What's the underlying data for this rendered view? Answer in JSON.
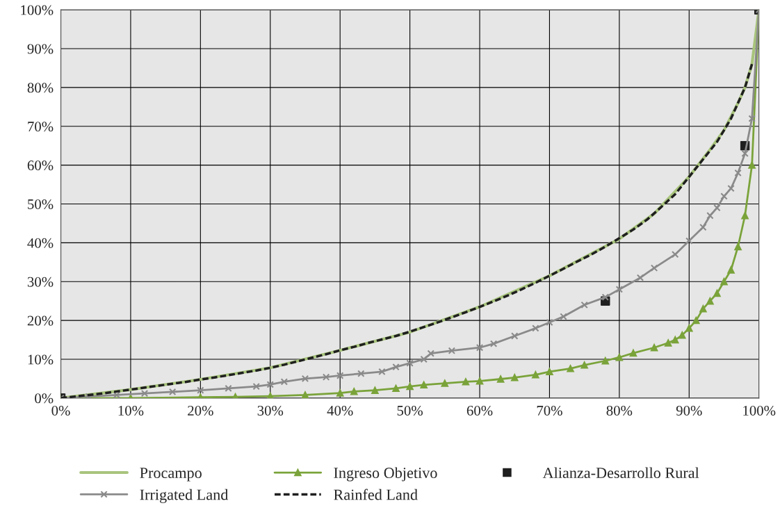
{
  "chart_data": {
    "type": "line",
    "xlim": [
      0,
      100
    ],
    "ylim": [
      0,
      100
    ],
    "xticks": [
      {
        "value": 0,
        "label": "0%"
      },
      {
        "value": 10,
        "label": "10%"
      },
      {
        "value": 20,
        "label": "20%"
      },
      {
        "value": 30,
        "label": "30%"
      },
      {
        "value": 40,
        "label": "40%"
      },
      {
        "value": 50,
        "label": "50%"
      },
      {
        "value": 60,
        "label": "60%"
      },
      {
        "value": 70,
        "label": "70%"
      },
      {
        "value": 80,
        "label": "80%"
      },
      {
        "value": 90,
        "label": "90%"
      },
      {
        "value": 100,
        "label": "100%"
      }
    ],
    "yticks": [
      {
        "value": 0,
        "label": "0%"
      },
      {
        "value": 10,
        "label": "10%"
      },
      {
        "value": 20,
        "label": "20%"
      },
      {
        "value": 30,
        "label": "30%"
      },
      {
        "value": 40,
        "label": "40%"
      },
      {
        "value": 50,
        "label": "50%"
      },
      {
        "value": 60,
        "label": "60%"
      },
      {
        "value": 70,
        "label": "70%"
      },
      {
        "value": 80,
        "label": "80%"
      },
      {
        "value": 90,
        "label": "90%"
      },
      {
        "value": 100,
        "label": "100%"
      }
    ],
    "grid": true,
    "legend": "bottom",
    "series": [
      {
        "name": "Procampo",
        "color": "#a8c47c",
        "marker": "none",
        "x": [
          0,
          10,
          20,
          30,
          40,
          50,
          60,
          70,
          80,
          85,
          90,
          93,
          95,
          97,
          98,
          99,
          100
        ],
        "values": [
          0,
          2.2,
          4.8,
          7.8,
          12.3,
          17,
          23.5,
          31.5,
          41,
          47.5,
          57,
          64,
          69,
          76,
          80,
          86,
          100
        ]
      },
      {
        "name": "Ingreso Objetivo",
        "color": "#7aa33a",
        "marker": "triangle",
        "x": [
          0,
          10,
          20,
          25,
          30,
          35,
          40,
          42,
          45,
          48,
          50,
          52,
          55,
          58,
          60,
          63,
          65,
          68,
          70,
          73,
          75,
          78,
          80,
          82,
          85,
          87,
          88,
          89,
          90,
          91,
          92,
          93,
          94,
          95,
          96,
          97,
          98,
          99,
          100
        ],
        "values": [
          0,
          0,
          0.2,
          0.3,
          0.5,
          0.8,
          1.3,
          1.7,
          2,
          2.5,
          3,
          3.4,
          3.8,
          4.2,
          4.4,
          4.9,
          5.3,
          6,
          6.8,
          7.6,
          8.5,
          9.6,
          10.5,
          11.6,
          13,
          14.2,
          15,
          16.2,
          18,
          20,
          23,
          25,
          27,
          30,
          33,
          39,
          47,
          60,
          100
        ]
      },
      {
        "name": "Alianza-Desarrollo Rural",
        "type": "scatter",
        "color": "#1f1f1f",
        "marker": "square",
        "x": [
          0,
          78,
          98,
          100
        ],
        "values": [
          0,
          25,
          65,
          100
        ]
      },
      {
        "name": "Irrigated Land",
        "color": "#8a8a8a",
        "marker": "cross",
        "x": [
          0,
          4,
          8,
          12,
          16,
          20,
          24,
          28,
          30,
          32,
          35,
          38,
          40,
          43,
          46,
          48,
          50,
          52,
          53,
          56,
          60,
          62,
          65,
          68,
          70,
          72,
          75,
          78,
          80,
          83,
          85,
          88,
          90,
          92,
          93,
          94,
          95,
          96,
          97,
          98,
          99,
          100
        ],
        "values": [
          0,
          0.4,
          0.8,
          1.2,
          1.6,
          2,
          2.5,
          3,
          3.5,
          4.2,
          5,
          5.4,
          5.8,
          6.3,
          6.8,
          8,
          9,
          10,
          11.5,
          12.2,
          13,
          14,
          16,
          18,
          19.5,
          21,
          24,
          26,
          28,
          31,
          33.5,
          37,
          40.5,
          44,
          47,
          49,
          52,
          54,
          58,
          63,
          72,
          100
        ]
      },
      {
        "name": "Rainfed Land",
        "color": "#1f1f1f",
        "marker": "none",
        "line_style": "dashed",
        "x": [
          0,
          2,
          4,
          6,
          8,
          10,
          12,
          14,
          16,
          18,
          20,
          22,
          24,
          26,
          28,
          30,
          32,
          34,
          36,
          38,
          40,
          42,
          44,
          46,
          48,
          50,
          52,
          54,
          56,
          58,
          60,
          62,
          64,
          66,
          68,
          70,
          72,
          74,
          76,
          78,
          80,
          82,
          84,
          86,
          88,
          90,
          92,
          94,
          95,
          96,
          97,
          98,
          99
        ],
        "values": [
          0,
          0.4,
          0.8,
          1.2,
          1.7,
          2.2,
          2.7,
          3.2,
          3.7,
          4.2,
          4.8,
          5.3,
          5.9,
          6.5,
          7.1,
          7.8,
          8.6,
          9.5,
          10.4,
          11.3,
          12.3,
          13.2,
          14.2,
          15.1,
          16,
          17.1,
          18.3,
          19.5,
          20.8,
          22.1,
          23.5,
          24.9,
          26.4,
          28,
          29.7,
          31.5,
          33.3,
          35.2,
          37,
          39,
          41.2,
          43.4,
          46,
          49.2,
          52.5,
          57,
          61.5,
          66,
          69,
          72,
          76,
          80,
          86
        ]
      }
    ]
  }
}
